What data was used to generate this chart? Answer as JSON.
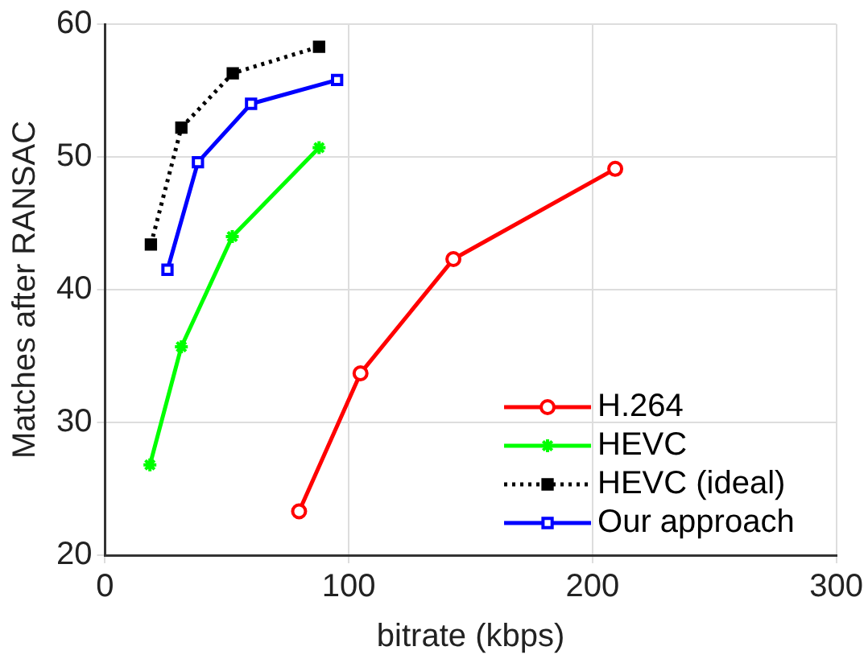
{
  "chart_data": {
    "type": "line",
    "xlabel": "bitrate (kbps)",
    "ylabel": "Matches after RANSAC",
    "xlim": [
      0,
      300
    ],
    "xticks": [
      0,
      100,
      200,
      300
    ],
    "ylim": [
      20,
      60
    ],
    "yticks": [
      20,
      30,
      40,
      50,
      60
    ],
    "grid": true,
    "legend": "bottom right",
    "series": [
      {
        "name": "H.264",
        "color": "#ff0000",
        "marker": "circle",
        "line_style": "solid",
        "x": [
          79.6,
          104.8,
          142.9,
          209.3
        ],
        "values": [
          23.3,
          33.7,
          42.3,
          49.1
        ]
      },
      {
        "name": "HEVC",
        "color": "#00ff00",
        "marker": "cross",
        "line_style": "solid",
        "x": [
          18.4,
          31.3,
          52.2,
          87.8
        ],
        "values": [
          26.8,
          35.7,
          44.0,
          50.7
        ]
      },
      {
        "name": "HEVC (ideal)",
        "color": "#000000",
        "marker": "square",
        "line_style": "dotted",
        "x": [
          18.8,
          31.3,
          52.4,
          87.8
        ],
        "values": [
          43.4,
          52.2,
          56.3,
          58.3
        ]
      },
      {
        "name": "Our approach",
        "color": "#0000ff",
        "marker": "square",
        "line_style": "solid",
        "x": [
          25.6,
          38.1,
          59.9,
          95.2
        ],
        "values": [
          41.5,
          49.6,
          54.0,
          55.8
        ]
      }
    ]
  }
}
